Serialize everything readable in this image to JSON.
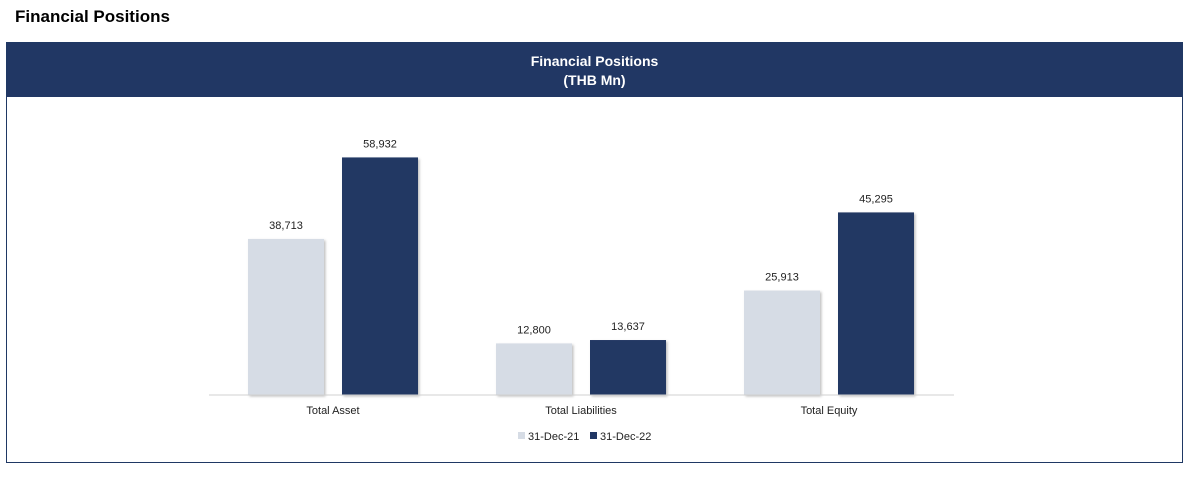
{
  "page": {
    "heading": "Financial Positions"
  },
  "chart_data": {
    "type": "bar",
    "title": "Financial Positions",
    "subtitle": "(THB Mn)",
    "categories": [
      "Total Asset",
      "Total Liabilities",
      "Total Equity"
    ],
    "series": [
      {
        "name": "31-Dec-21",
        "values": [
          38713,
          12800,
          25913
        ],
        "labels": [
          "38,713",
          "12,800",
          "25,913"
        ],
        "color": "#d6dce5"
      },
      {
        "name": "31-Dec-22",
        "values": [
          58932,
          13637,
          45295
        ],
        "labels": [
          "58,932",
          "13,637",
          "45,295"
        ],
        "color": "#213764"
      }
    ],
    "ylim": [
      0,
      64000
    ],
    "grid": false,
    "legend_position": "bottom",
    "xlabel": "",
    "ylabel": ""
  }
}
